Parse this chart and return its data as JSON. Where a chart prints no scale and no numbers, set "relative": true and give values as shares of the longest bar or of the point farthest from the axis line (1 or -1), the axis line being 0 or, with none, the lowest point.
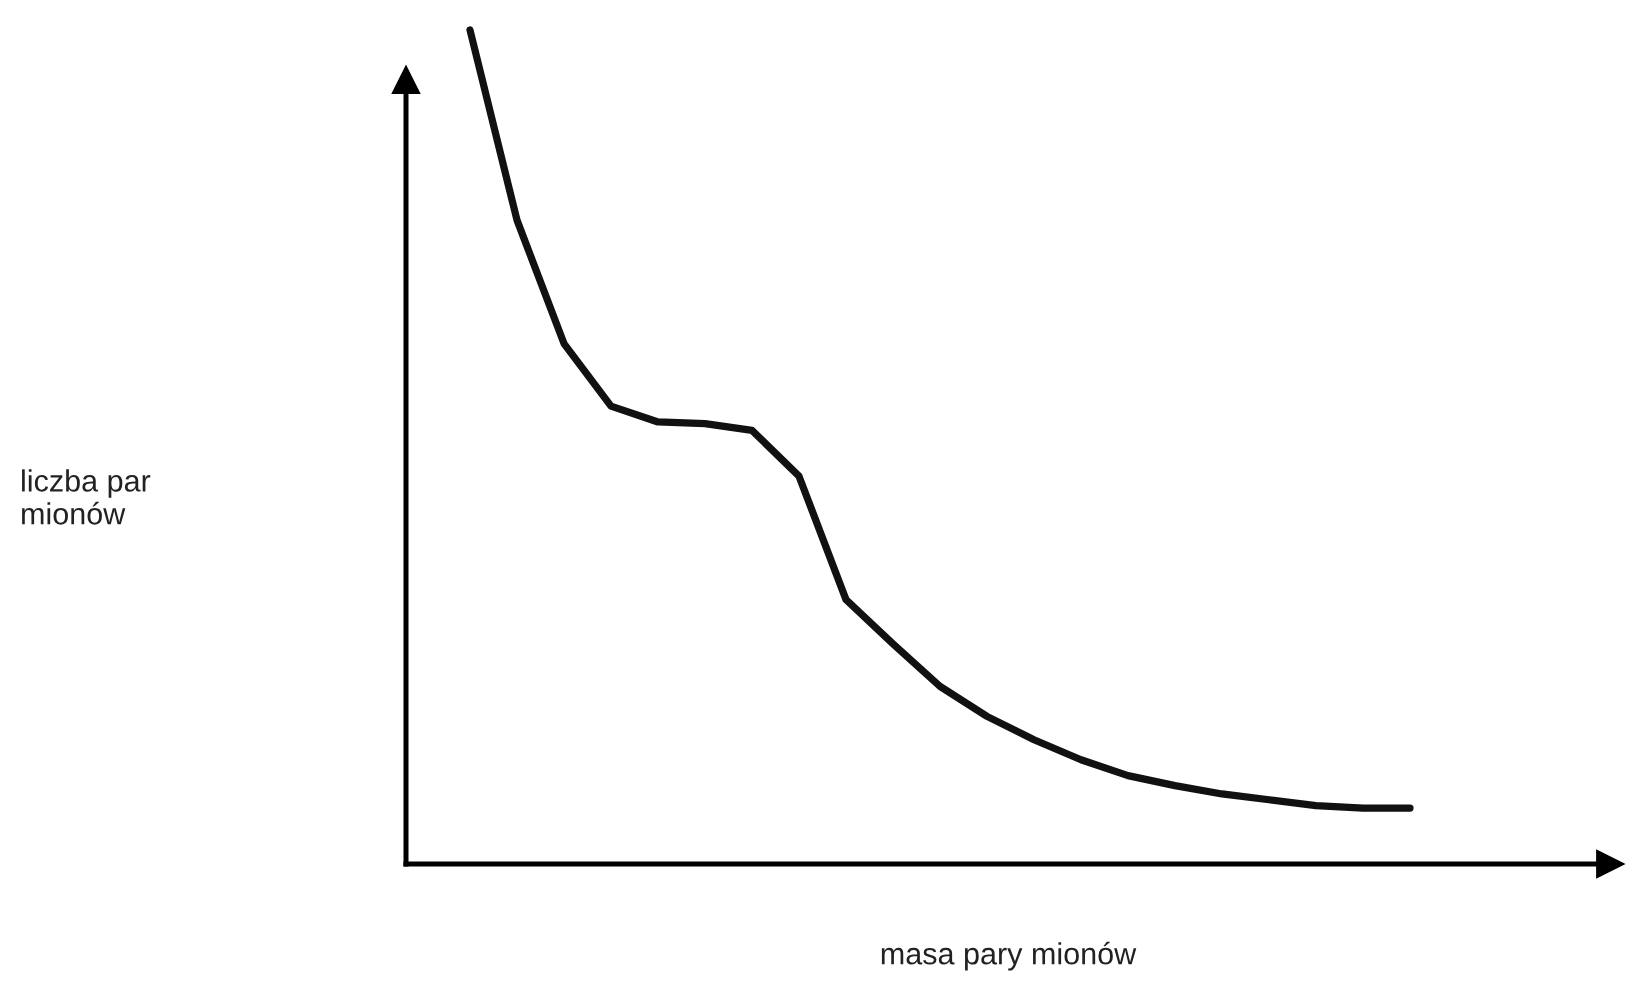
{
  "chart_data": {
    "type": "line",
    "relative": true,
    "xlabel": "masa pary mionów",
    "annotations": [
      "liczba par\nmionów"
    ],
    "categories": [
      null,
      null,
      null,
      null,
      null,
      null,
      null,
      null,
      null,
      null,
      null,
      null,
      null,
      null,
      null,
      null,
      null,
      null,
      null,
      null,
      null
    ],
    "series": [
      {
        "color": "#111111",
        "values": [
          1.0,
          0.772,
          0.624,
          0.549,
          0.53,
          0.528,
          0.52,
          0.465,
          0.317,
          0.264,
          0.213,
          0.177,
          0.149,
          0.125,
          0.106,
          0.094,
          0.084,
          0.077,
          0.07,
          0.067,
          0.067
        ]
      }
    ],
    "legend": false
  }
}
